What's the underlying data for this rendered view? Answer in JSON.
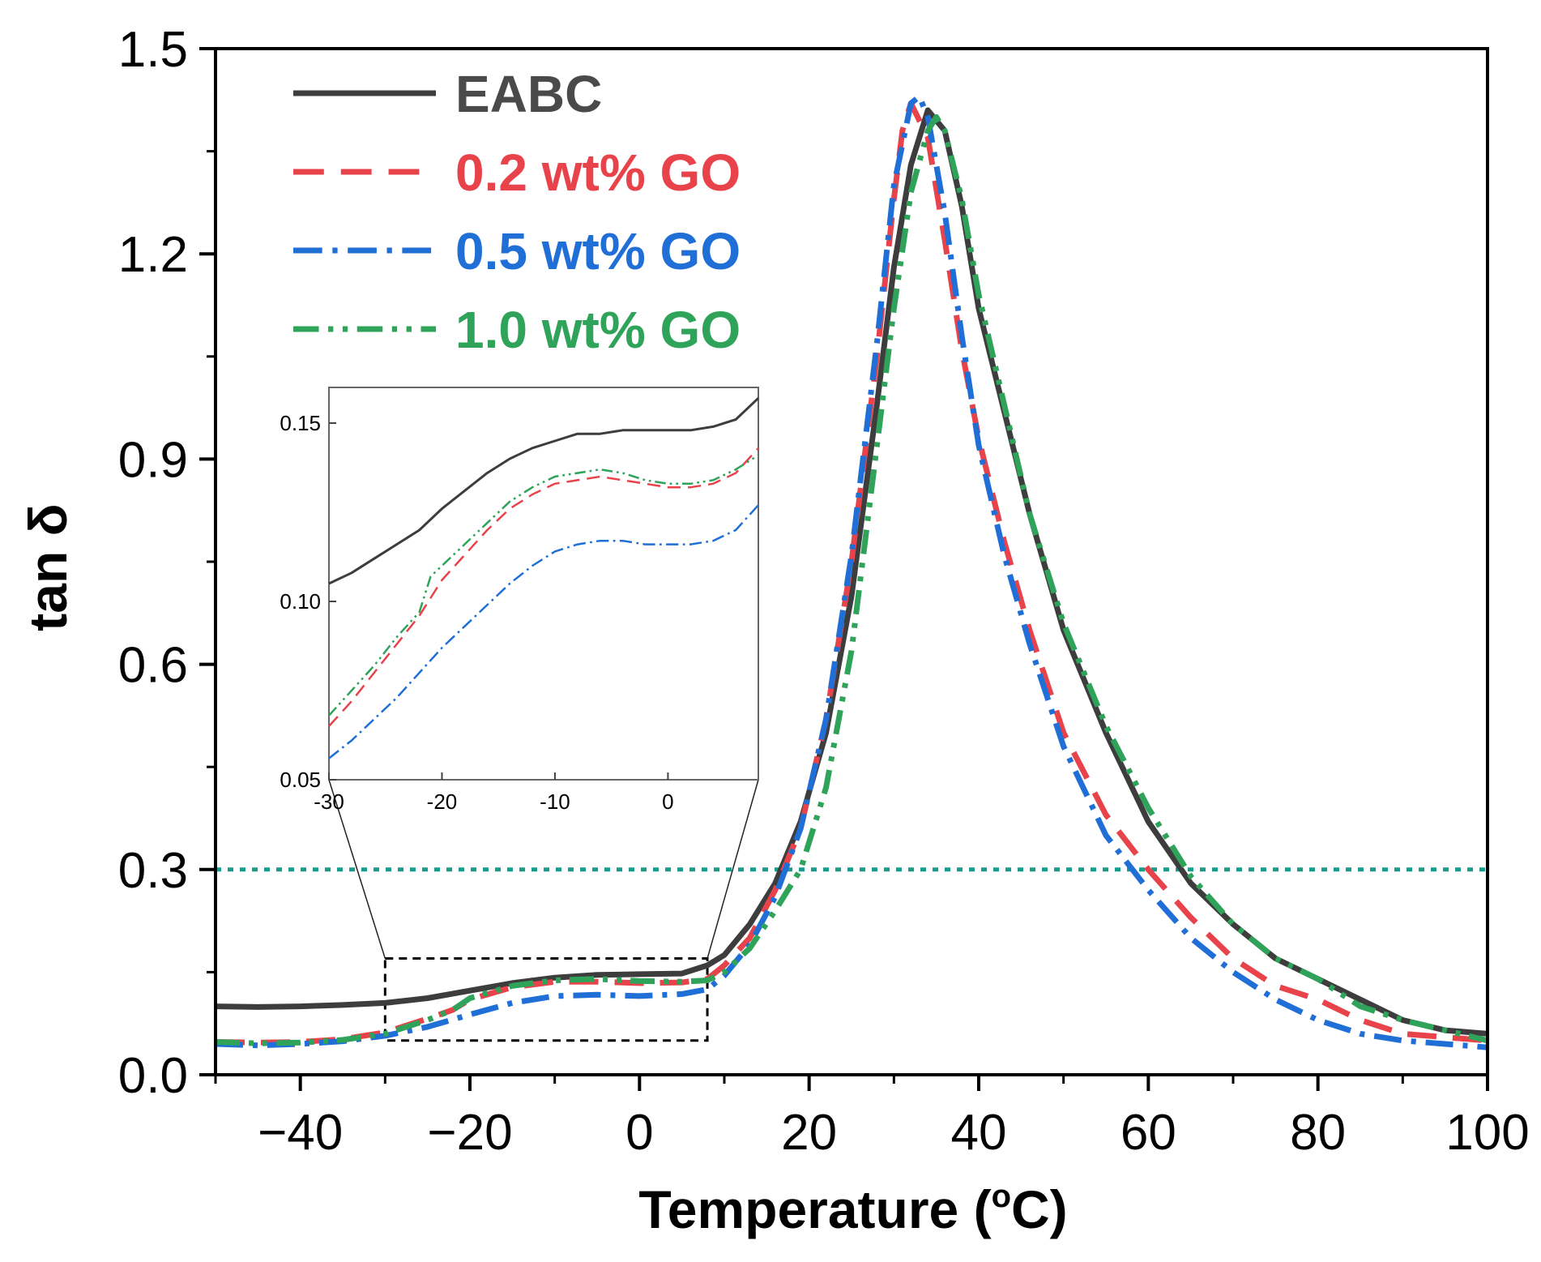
{
  "chart_data": {
    "type": "line",
    "title": "",
    "xlabel": "Temperature (",
    "xlabel_sup": "o",
    "xlabel_suffix": "C)",
    "ylabel": "tan δ",
    "xlim": [
      -50,
      100
    ],
    "ylim": [
      0.0,
      1.5
    ],
    "xticks": [
      -40,
      -20,
      0,
      20,
      40,
      60,
      80,
      100
    ],
    "xtick_labels": [
      "−40",
      "−20",
      "0",
      "20",
      "40",
      "60",
      "80",
      "100"
    ],
    "yticks": [
      0.0,
      0.3,
      0.6,
      0.9,
      1.2,
      1.5
    ],
    "ytick_labels": [
      "0.0",
      "0.3",
      "0.6",
      "0.9",
      "1.2",
      "1.5"
    ],
    "reference_line": {
      "y": 0.3,
      "color": "#1a9c8c",
      "style": "dotted"
    },
    "zoom_box": {
      "x": [
        -30,
        8
      ],
      "y": [
        0.05,
        0.17
      ]
    },
    "legend_position": "top-left",
    "series": [
      {
        "name": "EABC",
        "color": "#3d3d3d",
        "style": "solid",
        "x": [
          -50,
          -45,
          -40,
          -35,
          -30,
          -25,
          -20,
          -15,
          -10,
          -5,
          0,
          5,
          8,
          10,
          13,
          16,
          19,
          22,
          25,
          28,
          30,
          32,
          34,
          36,
          38,
          40,
          43,
          46,
          50,
          55,
          60,
          65,
          70,
          75,
          80,
          85,
          90,
          95,
          100
        ],
        "y": [
          0.1,
          0.099,
          0.1,
          0.102,
          0.105,
          0.112,
          0.123,
          0.134,
          0.142,
          0.146,
          0.147,
          0.148,
          0.16,
          0.175,
          0.22,
          0.28,
          0.37,
          0.5,
          0.7,
          0.98,
          1.18,
          1.33,
          1.41,
          1.38,
          1.27,
          1.12,
          0.97,
          0.82,
          0.65,
          0.5,
          0.37,
          0.28,
          0.22,
          0.17,
          0.14,
          0.11,
          0.08,
          0.065,
          0.06
        ]
      },
      {
        "name": "0.2 wt% GO",
        "color": "#e8434b",
        "style": "dashed",
        "x": [
          -50,
          -45,
          -40,
          -35,
          -30,
          -25,
          -22,
          -20,
          -15,
          -10,
          -5,
          0,
          5,
          8,
          10,
          13,
          16,
          19,
          22,
          25,
          28,
          30,
          31,
          32,
          34,
          36,
          38,
          40,
          43,
          46,
          50,
          55,
          60,
          65,
          70,
          75,
          80,
          85,
          90,
          95,
          100
        ],
        "y": [
          0.048,
          0.047,
          0.048,
          0.052,
          0.062,
          0.082,
          0.095,
          0.11,
          0.128,
          0.136,
          0.136,
          0.134,
          0.135,
          0.14,
          0.16,
          0.2,
          0.27,
          0.36,
          0.52,
          0.75,
          1.05,
          1.28,
          1.38,
          1.42,
          1.37,
          1.22,
          1.06,
          0.93,
          0.78,
          0.65,
          0.5,
          0.38,
          0.3,
          0.23,
          0.17,
          0.13,
          0.11,
          0.08,
          0.06,
          0.055,
          0.05
        ]
      },
      {
        "name": "0.5 wt% GO",
        "color": "#1f6fd6",
        "style": "dashdot",
        "x": [
          -50,
          -45,
          -40,
          -35,
          -30,
          -25,
          -20,
          -15,
          -10,
          -5,
          0,
          5,
          8,
          10,
          13,
          16,
          19,
          22,
          25,
          28,
          30,
          32,
          33,
          34,
          36,
          38,
          40,
          43,
          46,
          50,
          55,
          60,
          65,
          70,
          75,
          80,
          85,
          90,
          95,
          100
        ],
        "y": [
          0.045,
          0.043,
          0.045,
          0.049,
          0.057,
          0.07,
          0.088,
          0.105,
          0.115,
          0.117,
          0.115,
          0.118,
          0.125,
          0.145,
          0.19,
          0.26,
          0.36,
          0.52,
          0.76,
          1.07,
          1.3,
          1.42,
          1.43,
          1.4,
          1.26,
          1.08,
          0.92,
          0.76,
          0.63,
          0.48,
          0.35,
          0.27,
          0.2,
          0.15,
          0.11,
          0.08,
          0.06,
          0.05,
          0.045,
          0.04
        ]
      },
      {
        "name": "1.0 wt% GO",
        "color": "#2fa35a",
        "style": "dashdotdot",
        "x": [
          -50,
          -45,
          -40,
          -35,
          -30,
          -25,
          -22,
          -20,
          -15,
          -10,
          -5,
          0,
          5,
          8,
          10,
          13,
          16,
          19,
          22,
          25,
          28,
          30,
          32,
          34,
          35,
          36,
          38,
          40,
          43,
          46,
          50,
          55,
          60,
          65,
          70,
          75,
          80,
          85,
          90,
          95,
          100
        ],
        "y": [
          0.048,
          0.046,
          0.047,
          0.051,
          0.06,
          0.08,
          0.095,
          0.112,
          0.13,
          0.138,
          0.14,
          0.137,
          0.136,
          0.138,
          0.15,
          0.185,
          0.24,
          0.3,
          0.42,
          0.62,
          0.92,
          1.12,
          1.29,
          1.38,
          1.4,
          1.38,
          1.28,
          1.14,
          0.98,
          0.82,
          0.66,
          0.51,
          0.39,
          0.29,
          0.22,
          0.17,
          0.14,
          0.1,
          0.08,
          0.065,
          0.05
        ]
      }
    ],
    "inset": {
      "xlim": [
        -30,
        8
      ],
      "ylim": [
        0.05,
        0.16
      ],
      "xticks": [
        -30,
        -20,
        -10,
        0
      ],
      "xtick_labels": [
        "-30",
        "-20",
        "-10",
        "0"
      ],
      "yticks": [
        0.05,
        0.1,
        0.15
      ],
      "ytick_labels": [
        "0.05",
        "0.10",
        "0.15"
      ],
      "series": [
        {
          "name": "EABC",
          "color": "#3d3d3d",
          "style": "solid",
          "x": [
            -30,
            -28,
            -26,
            -24,
            -22,
            -20,
            -18,
            -16,
            -14,
            -12,
            -10,
            -8,
            -6,
            -4,
            -2,
            0,
            2,
            4,
            6,
            8
          ],
          "y": [
            0.105,
            0.108,
            0.112,
            0.116,
            0.12,
            0.126,
            0.131,
            0.136,
            0.14,
            0.143,
            0.145,
            0.147,
            0.147,
            0.148,
            0.148,
            0.148,
            0.148,
            0.149,
            0.151,
            0.157
          ]
        },
        {
          "name": "0.2 wt% GO",
          "color": "#e8434b",
          "style": "dashed",
          "x": [
            -30,
            -28,
            -26,
            -24,
            -22,
            -20,
            -18,
            -16,
            -14,
            -12,
            -10,
            -8,
            -6,
            -4,
            -2,
            0,
            2,
            4,
            6,
            8
          ],
          "y": [
            0.065,
            0.072,
            0.08,
            0.088,
            0.096,
            0.106,
            0.113,
            0.12,
            0.126,
            0.13,
            0.133,
            0.134,
            0.135,
            0.134,
            0.133,
            0.132,
            0.132,
            0.133,
            0.136,
            0.143
          ]
        },
        {
          "name": "0.5 wt% GO",
          "color": "#1f6fd6",
          "style": "dashdot",
          "x": [
            -30,
            -28,
            -26,
            -24,
            -22,
            -20,
            -18,
            -16,
            -14,
            -12,
            -10,
            -8,
            -6,
            -4,
            -2,
            0,
            2,
            4,
            6,
            8
          ],
          "y": [
            0.056,
            0.061,
            0.067,
            0.073,
            0.08,
            0.087,
            0.093,
            0.099,
            0.105,
            0.11,
            0.114,
            0.116,
            0.117,
            0.117,
            0.116,
            0.116,
            0.116,
            0.117,
            0.12,
            0.127
          ]
        },
        {
          "name": "1.0 wt% GO",
          "color": "#2fa35a",
          "style": "dashdotdot",
          "x": [
            -30,
            -28,
            -26,
            -24,
            -22,
            -21,
            -20,
            -18,
            -16,
            -14,
            -12,
            -10,
            -8,
            -6,
            -4,
            -2,
            0,
            2,
            4,
            6,
            8
          ],
          "y": [
            0.068,
            0.075,
            0.082,
            0.09,
            0.097,
            0.107,
            0.11,
            0.116,
            0.122,
            0.128,
            0.132,
            0.135,
            0.136,
            0.137,
            0.136,
            0.134,
            0.133,
            0.133,
            0.134,
            0.137,
            0.141
          ]
        }
      ]
    }
  }
}
